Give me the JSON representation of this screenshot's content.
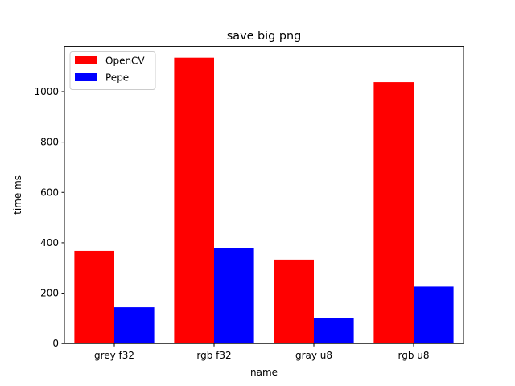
{
  "chart_data": {
    "type": "bar",
    "title": "save big png",
    "xlabel": "name",
    "ylabel": "time ms",
    "categories": [
      "grey f32",
      "rgb f32",
      "gray u8",
      "rgb u8"
    ],
    "series": [
      {
        "name": "OpenCV",
        "color": "#ff0000",
        "values": [
          368,
          1135,
          333,
          1038
        ]
      },
      {
        "name": "Pepe",
        "color": "#0000ff",
        "values": [
          144,
          378,
          101,
          226
        ]
      }
    ],
    "ylim": [
      0,
      1180
    ],
    "yticks": [
      0,
      200,
      400,
      600,
      800,
      1000
    ],
    "legend": "top-left",
    "grid": false
  }
}
